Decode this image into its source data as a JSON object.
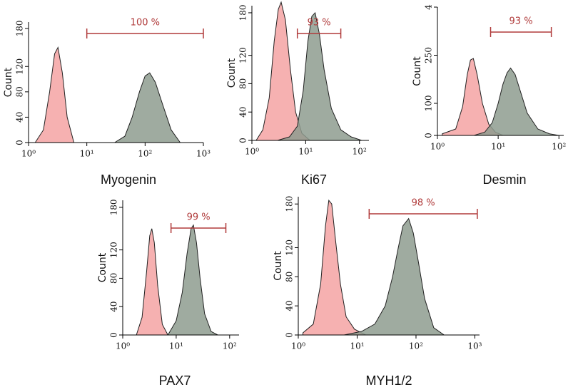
{
  "chart_data": [
    {
      "type": "histogram",
      "xlabel": "Myogenin",
      "ylabel": "Count",
      "xscale": "log",
      "xlim": [
        1,
        1000
      ],
      "xticks": [
        {
          "value": 1,
          "label": "10⁰"
        },
        {
          "value": 10,
          "label": "10¹"
        },
        {
          "value": 100,
          "label": "10²"
        },
        {
          "value": 1000,
          "label": "10³"
        }
      ],
      "ylim": [
        0,
        190
      ],
      "yticks": [
        0,
        40,
        80,
        120,
        180
      ],
      "series": [
        {
          "color": "#f4a3a3",
          "x": [
            1.3,
            1.8,
            2.3,
            2.8,
            3.2,
            3.8,
            4.6,
            6
          ],
          "values": [
            0,
            20,
            80,
            140,
            150,
            110,
            40,
            0
          ]
        },
        {
          "color": "#8e9c8f",
          "x": [
            30,
            45,
            60,
            80,
            100,
            120,
            150,
            200,
            280,
            400
          ],
          "values": [
            0,
            10,
            40,
            80,
            105,
            110,
            95,
            60,
            20,
            0
          ]
        }
      ],
      "gate": {
        "range": [
          10,
          1000
        ],
        "value": 100,
        "value_label": "100 %"
      }
    },
    {
      "type": "histogram",
      "xlabel": "Ki67",
      "ylabel": "Count",
      "xscale": "log",
      "xlim": [
        1,
        150
      ],
      "xticks": [
        {
          "value": 1,
          "label": "10⁰"
        },
        {
          "value": 10,
          "label": "10¹"
        },
        {
          "value": 100,
          "label": "10²"
        }
      ],
      "ylim": [
        0,
        190
      ],
      "yticks": [
        0,
        40,
        80,
        120,
        180
      ],
      "series": [
        {
          "color": "#f4a3a3",
          "x": [
            1.2,
            1.6,
            2.1,
            2.6,
            3.1,
            3.5,
            4.2,
            5.2,
            6.5,
            8.5,
            12
          ],
          "values": [
            0,
            15,
            60,
            140,
            185,
            195,
            170,
            100,
            40,
            10,
            0
          ]
        },
        {
          "color": "#8e9c8f",
          "x": [
            3,
            5,
            7,
            9,
            11,
            13,
            15,
            18,
            22,
            30,
            45,
            70,
            110
          ],
          "values": [
            0,
            5,
            20,
            70,
            140,
            175,
            180,
            150,
            100,
            45,
            15,
            5,
            0
          ]
        }
      ],
      "gate": {
        "range": [
          7,
          45
        ],
        "value": 93,
        "value_label": "93 %"
      }
    },
    {
      "type": "histogram",
      "xlabel": "Desmin",
      "ylabel": "Count",
      "xscale": "log",
      "xlim": [
        1,
        120
      ],
      "xticks": [
        {
          "value": 1,
          "label": "10⁰"
        },
        {
          "value": 10,
          "label": "10¹"
        },
        {
          "value": 100,
          "label": "10²"
        }
      ],
      "ylim": [
        0,
        400
      ],
      "yticks": [
        0,
        100,
        250,
        {
          "value": 400,
          "label": "4"
        }
      ],
      "series": [
        {
          "color": "#f4a3a3",
          "x": [
            1.2,
            2,
            2.6,
            3.1,
            3.5,
            3.9,
            4.5,
            5.5,
            7,
            9,
            12
          ],
          "values": [
            5,
            20,
            90,
            190,
            235,
            240,
            190,
            100,
            35,
            10,
            0
          ]
        },
        {
          "color": "#8e9c8f",
          "x": [
            4,
            6,
            8,
            10,
            12,
            14,
            16,
            19,
            23,
            30,
            45,
            70,
            100
          ],
          "values": [
            0,
            10,
            40,
            100,
            160,
            195,
            210,
            190,
            140,
            70,
            20,
            5,
            0
          ]
        }
      ],
      "gate": {
        "range": [
          7.5,
          75
        ],
        "value": 93,
        "value_label": "93 %"
      }
    },
    {
      "type": "histogram",
      "xlabel": "PAX7",
      "ylabel": "Count",
      "xscale": "log",
      "xlim": [
        1,
        150
      ],
      "xticks": [
        {
          "value": 1,
          "label": "10⁰"
        },
        {
          "value": 10,
          "label": "10¹"
        },
        {
          "value": 100,
          "label": "10²"
        }
      ],
      "ylim": [
        0,
        190
      ],
      "yticks": [
        0,
        40,
        80,
        120,
        180
      ],
      "series": [
        {
          "color": "#f4a3a3",
          "x": [
            1.8,
            2.3,
            2.8,
            3.2,
            3.5,
            3.9,
            4.5,
            5.5,
            7
          ],
          "values": [
            0,
            25,
            90,
            140,
            150,
            130,
            70,
            15,
            0
          ]
        },
        {
          "color": "#8e9c8f",
          "x": [
            7,
            10,
            13,
            16,
            19,
            21,
            24,
            28,
            34,
            45,
            60
          ],
          "values": [
            0,
            20,
            60,
            115,
            150,
            155,
            130,
            80,
            30,
            5,
            0
          ]
        }
      ],
      "gate": {
        "range": [
          8,
          85
        ],
        "value": 99,
        "value_label": "99 %"
      }
    },
    {
      "type": "histogram",
      "xlabel": "MYH1/2",
      "ylabel": "Count",
      "xscale": "log",
      "xlim": [
        1,
        1200
      ],
      "xticks": [
        {
          "value": 1,
          "label": "10⁰"
        },
        {
          "value": 10,
          "label": "10¹"
        },
        {
          "value": 100,
          "label": "10²"
        },
        {
          "value": 1000,
          "label": "10³"
        }
      ],
      "ylim": [
        0,
        190
      ],
      "yticks": [
        0,
        40,
        80,
        120,
        180
      ],
      "series": [
        {
          "color": "#f4a3a3",
          "x": [
            1.2,
            1.8,
            2.4,
            2.9,
            3.3,
            3.7,
            4.3,
            5.2,
            6.5,
            9,
            14
          ],
          "values": [
            3,
            15,
            70,
            150,
            185,
            180,
            130,
            70,
            25,
            8,
            0
          ]
        },
        {
          "color": "#8e9c8f",
          "x": [
            6,
            12,
            20,
            30,
            40,
            50,
            60,
            75,
            90,
            110,
            140,
            200,
            300
          ],
          "values": [
            0,
            5,
            15,
            40,
            80,
            120,
            150,
            160,
            140,
            100,
            50,
            10,
            0
          ]
        }
      ],
      "gate": {
        "range": [
          16,
          1100
        ],
        "value": 98,
        "value_label": "98 %"
      }
    }
  ]
}
